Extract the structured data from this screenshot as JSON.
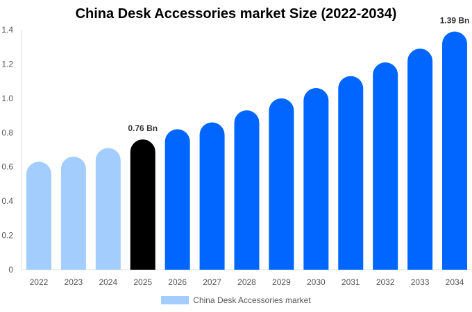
{
  "chart_data": {
    "type": "bar",
    "title": "China Desk Accessories market Size (2022-2034)",
    "xlabel": "",
    "ylabel": "",
    "ylim": [
      0,
      1.4
    ],
    "yticks": [
      0,
      0.2,
      0.4,
      0.6,
      0.8,
      1.0,
      1.2,
      1.4
    ],
    "ytick_labels": [
      "0",
      "0.2",
      "0.4",
      "0.6",
      "0.8",
      "1.0",
      "1.2",
      "1.4"
    ],
    "categories": [
      "2022",
      "2023",
      "2024",
      "2025",
      "2026",
      "2027",
      "2028",
      "2029",
      "2030",
      "2031",
      "2032",
      "2033",
      "2034"
    ],
    "values": [
      0.63,
      0.66,
      0.71,
      0.76,
      0.82,
      0.86,
      0.93,
      1.0,
      1.06,
      1.13,
      1.21,
      1.29,
      1.39
    ],
    "bar_colors": [
      "#a3cdfc",
      "#a3cdfc",
      "#a3cdfc",
      "#000000",
      "#0066ff",
      "#0066ff",
      "#0066ff",
      "#0066ff",
      "#0066ff",
      "#0066ff",
      "#0066ff",
      "#0066ff",
      "#0066ff"
    ],
    "data_labels": {
      "3": "0.76 Bn",
      "12": "1.39 Bn"
    },
    "legend": {
      "label": "China Desk Accessories market",
      "color": "#a3cdfc",
      "placement": "bottom"
    },
    "grid": false
  }
}
